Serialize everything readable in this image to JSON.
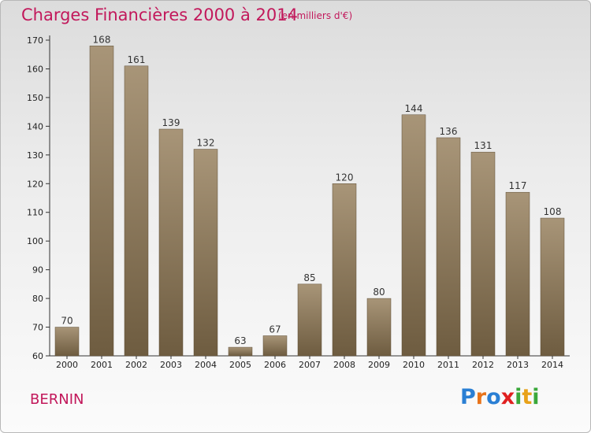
{
  "header": {
    "title": "Charges Financières 2000 à 2014",
    "unit": "(en milliers d'€)"
  },
  "footer": {
    "place": "BERNIN",
    "logo_letters": [
      {
        "ch": "P",
        "color": "#2a7fd4"
      },
      {
        "ch": "r",
        "color": "#e8731a"
      },
      {
        "ch": "o",
        "color": "#2a7fd4"
      },
      {
        "ch": "x",
        "color": "#e02020"
      },
      {
        "ch": "i",
        "color": "#3aa83a"
      },
      {
        "ch": "t",
        "color": "#e8a21a"
      },
      {
        "ch": "i",
        "color": "#3aa83a"
      }
    ]
  },
  "colors": {
    "bar_top": "#a89578",
    "bar_bottom": "#6e5c40",
    "accent": "#c2185b"
  },
  "chart_data": {
    "type": "bar",
    "title": "Charges Financières 2000 à 2014",
    "subtitle": "(en milliers d'€)",
    "categories": [
      "2000",
      "2001",
      "2002",
      "2003",
      "2004",
      "2005",
      "2006",
      "2007",
      "2008",
      "2009",
      "2010",
      "2011",
      "2012",
      "2013",
      "2014"
    ],
    "values": [
      70,
      168,
      161,
      139,
      132,
      63,
      67,
      85,
      120,
      80,
      144,
      136,
      131,
      117,
      108
    ],
    "yticks": [
      60,
      70,
      80,
      90,
      100,
      110,
      120,
      130,
      140,
      150,
      160,
      170
    ],
    "ylim": [
      60,
      170
    ],
    "grid": false,
    "legend": "none"
  }
}
